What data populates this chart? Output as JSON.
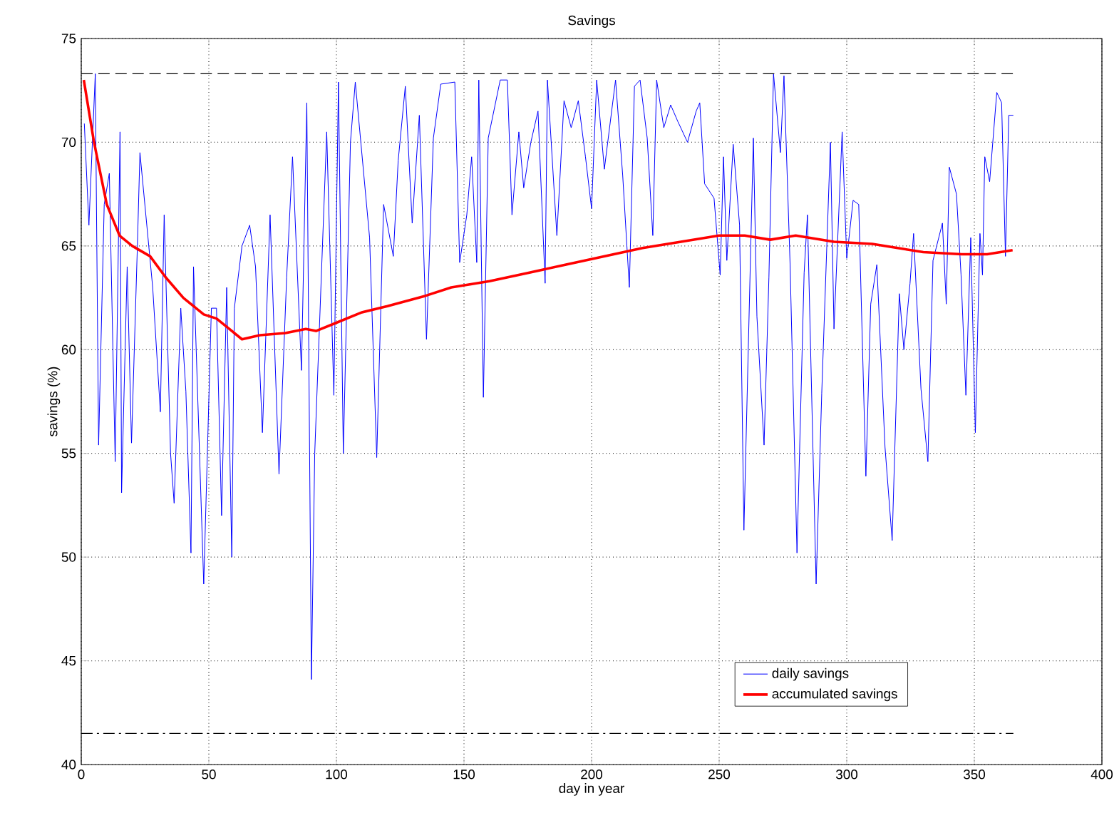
{
  "chart_data": {
    "type": "line",
    "title": "Savings",
    "xlabel": "day in year",
    "ylabel": "savings (%)",
    "xlim": [
      0,
      400
    ],
    "xticks": [
      0,
      50,
      100,
      150,
      200,
      250,
      300,
      350,
      400
    ],
    "ylim": [
      40,
      75
    ],
    "yticks": [
      40,
      45,
      50,
      55,
      60,
      65,
      70,
      75
    ],
    "grid": true,
    "legend": "bottom right",
    "marker": "none",
    "ref_lines": [
      {
        "axis": "y",
        "value": 73.3,
        "color": "#000000",
        "line_style": "dashed"
      },
      {
        "axis": "y",
        "value": 41.5,
        "color": "#000000",
        "line_style": "dashdot"
      }
    ],
    "series": [
      {
        "name": "daily savings",
        "color": "#0000ff",
        "line_style": "solid",
        "x": [
          1.2,
          3,
          5.5,
          6.8,
          9,
          11,
          13.3,
          15.2,
          15.8,
          18,
          19.7,
          22,
          23,
          28,
          31,
          32.5,
          35,
          36.4,
          39,
          41,
          43,
          44,
          48,
          51,
          53,
          55,
          57,
          59,
          60,
          63,
          66,
          68.3,
          71,
          74,
          77.5,
          80.5,
          82.8,
          86.3,
          88.4,
          90.2,
          91.5,
          96.2,
          99,
          100.8,
          102.7,
          105.5,
          107.4,
          113,
          115.8,
          118.5,
          122.3,
          124.2,
          127,
          129.7,
          132.5,
          135.3,
          138,
          140.9,
          146.4,
          148.3,
          151.1,
          153,
          155,
          155.8,
          157.6,
          159.5,
          164.2,
          167,
          168.8,
          171.5,
          173.4,
          176.2,
          179,
          181.8,
          182.7,
          186.4,
          189.2,
          192,
          194.8,
          197.6,
          200,
          202,
          205,
          209.4,
          212.2,
          214.8,
          216.8,
          219,
          221.8,
          224,
          225.5,
          228.3,
          231,
          233.8,
          237.6,
          241,
          242.4,
          244.3,
          248,
          250.4,
          251.7,
          253,
          255.5,
          258,
          259.7,
          263.4,
          264.8,
          267.6,
          269.5,
          271.3,
          274,
          275.4,
          277.8,
          280.5,
          283.3,
          284.6,
          288,
          290.2,
          293.6,
          295,
          298.2,
          300,
          302.5,
          304.7,
          307.5,
          309.4,
          311.8,
          315,
          317.8,
          320.6,
          322.4,
          324.8,
          326.2,
          329.1,
          331.8,
          333.8,
          337.5,
          339,
          340.2,
          343,
          344.8,
          346.7,
          348.6,
          350.4,
          352.2,
          353.2,
          354.1,
          356,
          358.8,
          360.7,
          362.2,
          363.5,
          365.3
        ],
        "values": [
          70.9,
          66,
          73.3,
          55.4,
          67,
          68.5,
          54.6,
          70.5,
          53.1,
          64,
          55.5,
          65,
          69.5,
          63,
          57,
          66.5,
          55,
          52.6,
          62,
          58,
          50.2,
          64,
          48.7,
          62,
          62,
          52,
          63,
          50,
          62,
          65,
          66,
          64,
          56,
          66.5,
          54,
          63.5,
          69.3,
          59,
          71.9,
          44.1,
          55,
          70.5,
          57.8,
          72.9,
          55,
          70,
          72.9,
          65.4,
          54.8,
          67,
          64.5,
          69.1,
          72.7,
          66.1,
          71.3,
          60.5,
          70.2,
          72.8,
          72.9,
          64.2,
          66.5,
          69.3,
          64.2,
          73,
          57.7,
          70.2,
          73,
          73,
          66.5,
          70.5,
          67.8,
          70,
          71.5,
          63.2,
          73,
          65.5,
          72,
          70.7,
          72,
          69.3,
          66.8,
          73,
          68.7,
          73,
          68.4,
          63,
          72.7,
          73,
          70.2,
          65.5,
          73,
          70.7,
          71.8,
          71,
          70,
          71.5,
          71.9,
          68,
          67.3,
          63.6,
          69.3,
          64.3,
          69.9,
          66,
          51.3,
          70.2,
          61.6,
          55.4,
          63.5,
          73.3,
          69.5,
          73.2,
          64.1,
          50.2,
          63.7,
          66.5,
          48.7,
          57.9,
          70,
          61,
          70.5,
          64.4,
          67.2,
          67,
          53.9,
          62.2,
          64.1,
          55.3,
          50.8,
          62.7,
          60,
          63.2,
          65.6,
          58.1,
          54.6,
          64.3,
          66.1,
          62.2,
          68.8,
          67.5,
          63.6,
          57.8,
          65.4,
          56,
          65.6,
          63.6,
          69.3,
          68.1,
          72.4,
          71.9,
          64.5,
          71.3,
          71.3
        ]
      },
      {
        "name": "accumulated savings",
        "color": "#ff0000",
        "line_style": "solid",
        "x": [
          1,
          5,
          10,
          15,
          20,
          27,
          33,
          40,
          48,
          53,
          58,
          63,
          70,
          80,
          88,
          92,
          100,
          110,
          120,
          135,
          145,
          160,
          175,
          190,
          205,
          220,
          235,
          250,
          260,
          270,
          280,
          295,
          310,
          320,
          330,
          345,
          355,
          365
        ],
        "values": [
          73,
          70,
          67,
          65.5,
          65,
          64.5,
          63.5,
          62.5,
          61.7,
          61.5,
          61,
          60.5,
          60.7,
          60.8,
          61,
          60.9,
          61.3,
          61.8,
          62.1,
          62.6,
          63,
          63.3,
          63.7,
          64.1,
          64.5,
          64.9,
          65.2,
          65.5,
          65.5,
          65.3,
          65.5,
          65.2,
          65.1,
          64.9,
          64.7,
          64.6,
          64.6,
          64.8
        ]
      }
    ]
  }
}
